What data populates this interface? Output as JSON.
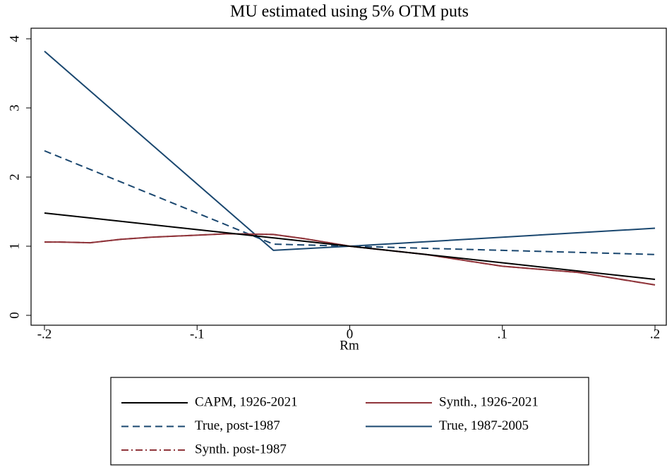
{
  "chart_data": {
    "type": "line",
    "title": "MU estimated using 5% OTM puts",
    "x_label": "Rm",
    "xlim": [
      -0.2,
      0.2
    ],
    "xticks": [
      {
        "value": -0.2,
        "label": "-.2"
      },
      {
        "value": -0.1,
        "label": "-.1"
      },
      0,
      {
        "value": 0.1,
        "label": ".1"
      },
      {
        "value": 0.2,
        "label": ".2"
      }
    ],
    "ylim": [
      0,
      4
    ],
    "yticks": [
      0,
      1,
      2,
      3,
      4
    ],
    "grid": false,
    "legend": "bottom",
    "series": [
      {
        "name": "CAPM, 1926-2021",
        "color": "#000000",
        "dash": "solid",
        "x": [
          -0.2,
          -0.1,
          0,
          0.1,
          0.2
        ],
        "values": [
          1.48,
          1.24,
          1.0,
          0.76,
          0.52
        ]
      },
      {
        "name": "Synth., 1926-2021",
        "color": "#90353b",
        "dash": "solid",
        "x": [
          -0.2,
          -0.19,
          -0.17,
          -0.15,
          -0.13,
          -0.1,
          -0.08,
          -0.05,
          -0.03,
          0,
          0.05,
          0.1,
          0.15,
          0.2
        ],
        "values": [
          1.06,
          1.06,
          1.05,
          1.1,
          1.13,
          1.16,
          1.18,
          1.17,
          1.11,
          1.0,
          0.88,
          0.71,
          0.62,
          0.44
        ]
      },
      {
        "name": "True, post-1987",
        "color": "#1a476f",
        "dash": "dashed",
        "x": [
          -0.2,
          -0.05,
          0,
          0.2
        ],
        "values": [
          2.38,
          1.03,
          1.0,
          0.88
        ]
      },
      {
        "name": "True, 1987-2005",
        "color": "#1a476f",
        "dash": "solid",
        "x": [
          -0.2,
          -0.05,
          0,
          0.2
        ],
        "values": [
          3.82,
          0.94,
          1.0,
          1.26
        ]
      },
      {
        "name": "Synth. post-1987",
        "color": "#90353b",
        "dash": "dashdot",
        "x": [
          -0.2,
          -0.19,
          -0.17,
          -0.15,
          -0.13,
          -0.1,
          -0.08,
          -0.05,
          -0.03,
          0,
          0.05,
          0.1,
          0.15,
          0.2
        ],
        "values": [
          1.06,
          1.06,
          1.05,
          1.1,
          1.13,
          1.16,
          1.18,
          1.17,
          1.11,
          1.0,
          0.88,
          0.71,
          0.62,
          0.44
        ]
      }
    ]
  }
}
